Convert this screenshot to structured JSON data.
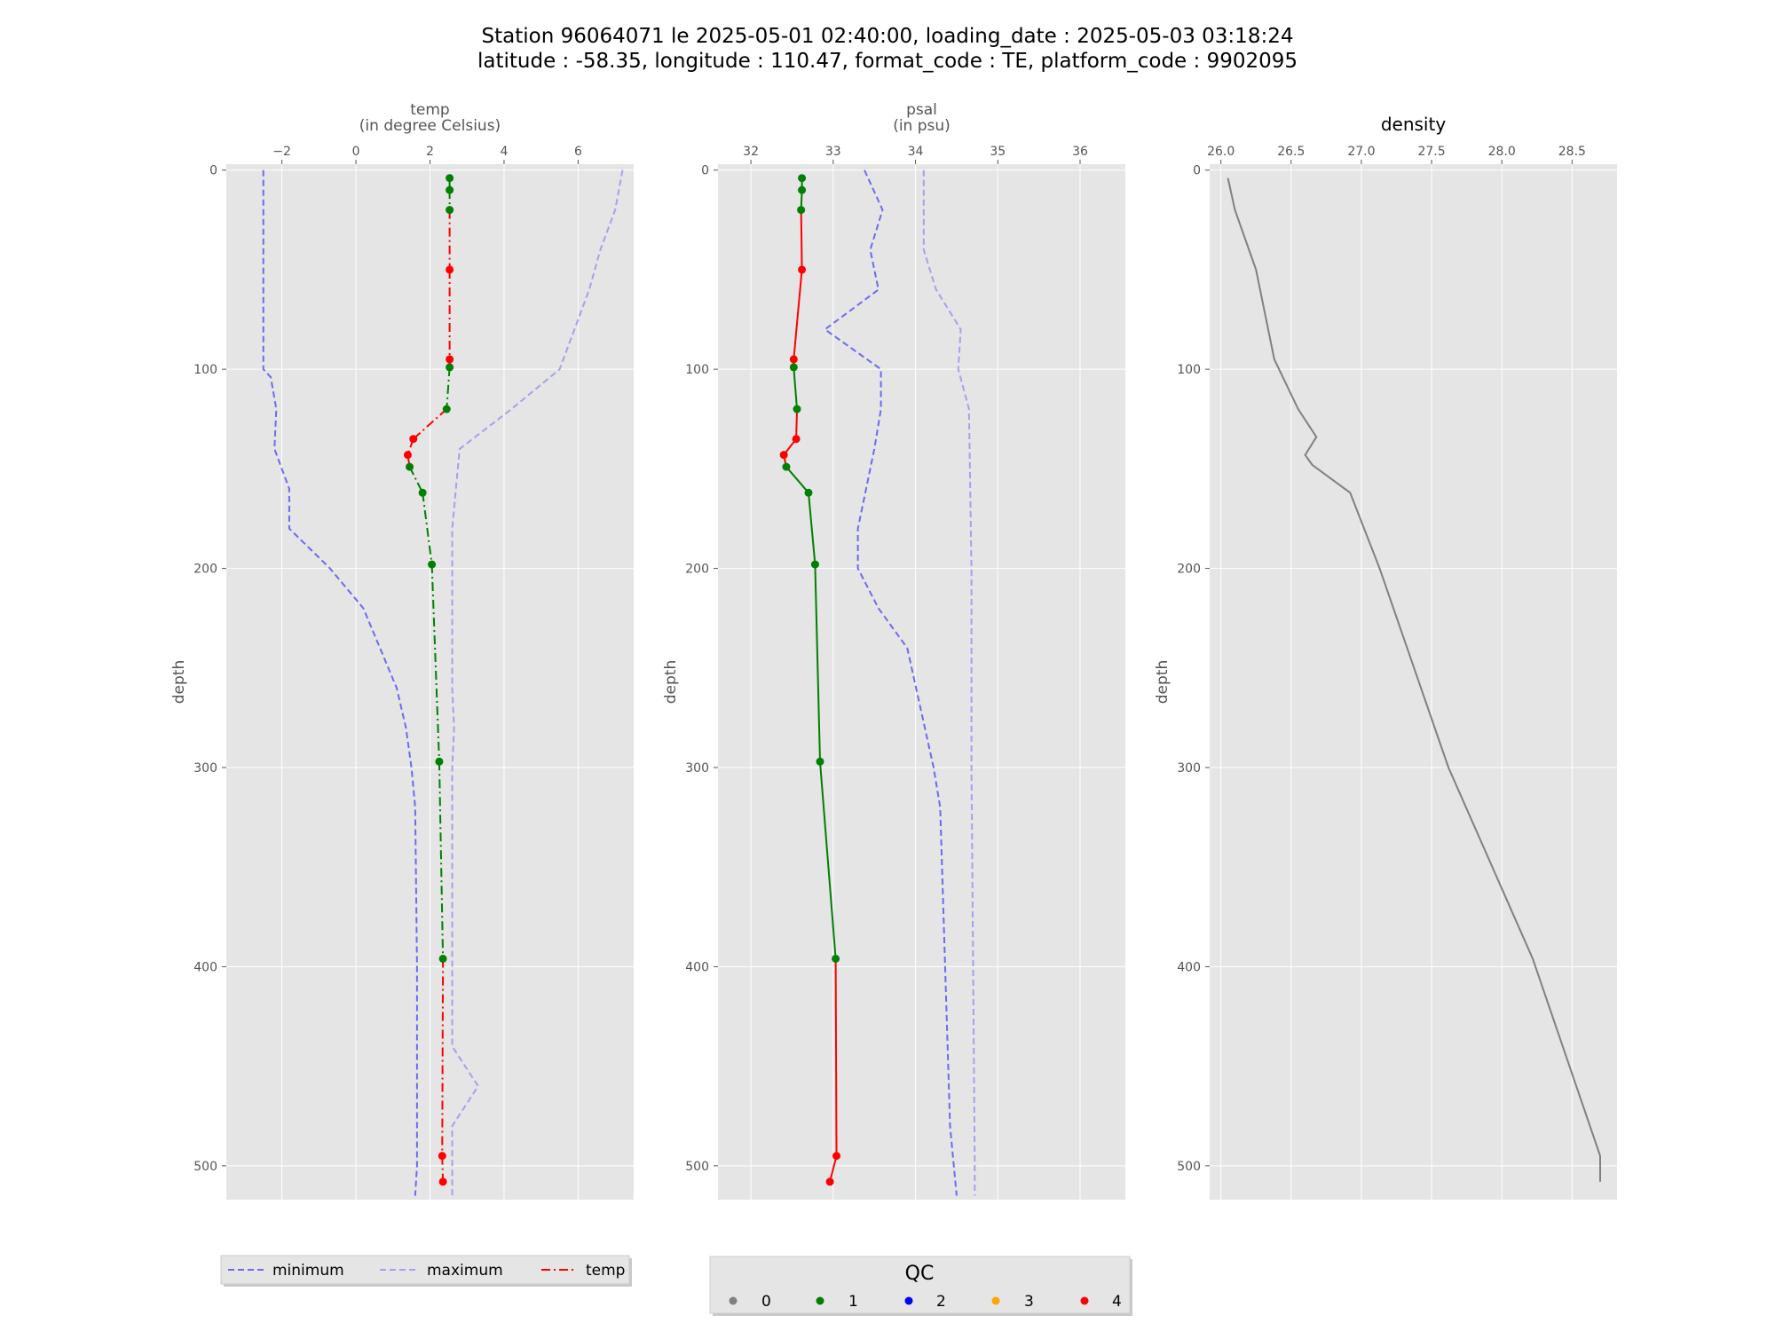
{
  "title": {
    "line1": "Station 96064071 le 2025-05-01 02:40:00, loading_date : 2025-05-03 03:18:24",
    "line2": "latitude : -58.35, longitude : 110.47, format_code : TE, platform_code : 9902095"
  },
  "colors": {
    "background": "#e5e5e5",
    "grid": "#ffffff",
    "minimum": "#6b6bf0",
    "maximum": "#a2a2ee",
    "qc0": "#808080",
    "qc1": "#008000",
    "qc2": "#0000ff",
    "qc3": "#ffa500",
    "qc4": "#ff0000",
    "density": "#808080"
  },
  "legend_left": {
    "minimum": "minimum",
    "maximum": "maximum",
    "temp": "temp"
  },
  "legend_qc": {
    "title": "QC",
    "items": [
      "0",
      "1",
      "2",
      "3",
      "4"
    ]
  },
  "chart_data": [
    {
      "type": "line",
      "title": "",
      "xlabel_line1": "temp",
      "xlabel_line2": "(in degree Celsius)",
      "ylabel": "depth",
      "xlim": [
        -3.5,
        7.5
      ],
      "ylim": [
        517,
        -3
      ],
      "y_inverted": true,
      "xticks": [
        -2,
        0,
        2,
        4,
        6
      ],
      "xtick_labels": [
        "−2",
        "0",
        "2",
        "4",
        "6"
      ],
      "yticks": [
        0,
        100,
        200,
        300,
        400,
        500
      ],
      "ytick_labels": [
        "0",
        "100",
        "200",
        "300",
        "400",
        "500"
      ],
      "grid": true,
      "series": [
        {
          "name": "minimum",
          "style": "dashed",
          "depth": [
            0,
            100,
            104,
            120,
            140,
            160,
            180,
            200,
            220,
            260,
            280,
            300,
            320,
            400,
            500,
            515
          ],
          "values": [
            -2.5,
            -2.5,
            -2.3,
            -2.15,
            -2.2,
            -1.8,
            -1.8,
            -0.7,
            0.2,
            1.1,
            1.35,
            1.5,
            1.6,
            1.65,
            1.65,
            1.6
          ]
        },
        {
          "name": "maximum",
          "style": "dashed",
          "depth": [
            0,
            20,
            40,
            60,
            80,
            100,
            120,
            140,
            180,
            220,
            260,
            280,
            300,
            440,
            460,
            480,
            515
          ],
          "values": [
            7.2,
            7.0,
            6.6,
            6.3,
            5.9,
            5.5,
            4.2,
            2.8,
            2.6,
            2.6,
            2.6,
            2.65,
            2.6,
            2.6,
            3.3,
            2.6,
            2.6
          ]
        },
        {
          "name": "temp",
          "style": "dashdot",
          "depth": [
            4,
            10,
            20,
            50,
            95,
            99,
            120,
            135,
            143,
            149,
            162,
            198,
            297,
            396,
            495,
            508
          ],
          "values": [
            2.53,
            2.53,
            2.53,
            2.53,
            2.53,
            2.53,
            2.45,
            1.55,
            1.4,
            1.45,
            1.8,
            2.05,
            2.25,
            2.35,
            2.33,
            2.35
          ],
          "qc": [
            1,
            1,
            1,
            4,
            4,
            1,
            1,
            4,
            4,
            1,
            1,
            1,
            1,
            1,
            4,
            4
          ]
        }
      ]
    },
    {
      "type": "line",
      "title": "",
      "xlabel_line1": "psal",
      "xlabel_line2": "(in psu)",
      "ylabel": "depth",
      "xlim": [
        31.6,
        36.55
      ],
      "ylim": [
        517,
        -3
      ],
      "y_inverted": true,
      "xticks": [
        32,
        33,
        34,
        35,
        36
      ],
      "xtick_labels": [
        "32",
        "33",
        "34",
        "35",
        "36"
      ],
      "yticks": [
        0,
        100,
        200,
        300,
        400,
        500
      ],
      "ytick_labels": [
        "0",
        "100",
        "200",
        "300",
        "400",
        "500"
      ],
      "grid": true,
      "series": [
        {
          "name": "minimum",
          "style": "dashed",
          "depth": [
            0,
            20,
            40,
            60,
            80,
            100,
            120,
            140,
            160,
            180,
            200,
            220,
            240,
            300,
            320,
            480,
            515
          ],
          "values": [
            33.38,
            33.6,
            33.45,
            33.55,
            32.9,
            33.58,
            33.58,
            33.5,
            33.4,
            33.3,
            33.3,
            33.55,
            33.9,
            34.22,
            34.3,
            34.42,
            34.5
          ]
        },
        {
          "name": "maximum",
          "style": "dashed",
          "depth": [
            0,
            40,
            60,
            80,
            100,
            120,
            200,
            300,
            400,
            500,
            515
          ],
          "values": [
            34.1,
            34.1,
            34.25,
            34.55,
            34.52,
            34.65,
            34.68,
            34.68,
            34.7,
            34.72,
            34.72
          ],
          "qc": []
        },
        {
          "name": "psal",
          "style": "solid",
          "depth": [
            4,
            10,
            20,
            50,
            95,
            99,
            120,
            135,
            143,
            149,
            162,
            198,
            297,
            396,
            495,
            508
          ],
          "values": [
            32.62,
            32.62,
            32.61,
            32.62,
            32.52,
            32.52,
            32.56,
            32.55,
            32.4,
            32.43,
            32.7,
            32.78,
            32.84,
            33.03,
            33.04,
            32.96
          ],
          "qc": [
            1,
            1,
            1,
            4,
            4,
            1,
            1,
            4,
            4,
            1,
            1,
            1,
            1,
            1,
            4,
            4
          ]
        }
      ]
    },
    {
      "type": "line",
      "title": "density",
      "xlabel_line1": "",
      "xlabel_line2": "",
      "ylabel": "depth",
      "xlim": [
        25.92,
        28.82
      ],
      "ylim": [
        517,
        -3
      ],
      "y_inverted": true,
      "xticks": [
        26.0,
        26.5,
        27.0,
        27.5,
        28.0,
        28.5
      ],
      "xtick_labels": [
        "26.0",
        "26.5",
        "27.0",
        "27.5",
        "28.0",
        "28.5"
      ],
      "yticks": [
        0,
        100,
        200,
        300,
        400,
        500
      ],
      "ytick_labels": [
        "0",
        "100",
        "200",
        "300",
        "400",
        "500"
      ],
      "grid": true,
      "series": [
        {
          "name": "density",
          "style": "solid",
          "depth": [
            4,
            20,
            50,
            95,
            120,
            134,
            143,
            148,
            162,
            200,
            300,
            396,
            495,
            508
          ],
          "values": [
            26.05,
            26.1,
            26.25,
            26.38,
            26.55,
            26.68,
            26.6,
            26.65,
            26.92,
            27.13,
            27.62,
            28.22,
            28.7,
            28.7
          ]
        }
      ]
    }
  ]
}
